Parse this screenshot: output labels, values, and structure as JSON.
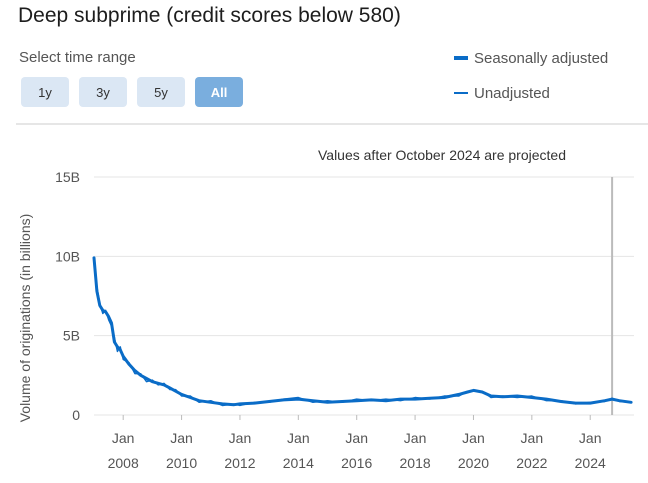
{
  "title": "Deep subprime (credit scores below 580)",
  "time_range": {
    "label": "Select time range",
    "options": [
      {
        "label": "1y",
        "active": false
      },
      {
        "label": "3y",
        "active": false
      },
      {
        "label": "5y",
        "active": false
      },
      {
        "label": "All",
        "active": true
      }
    ]
  },
  "colors": {
    "series": "#0a6cc7",
    "grid": "#e4e4e4",
    "projection_line": "#bbbbbb",
    "active_button": "#7aaede",
    "button": "#dbe7f4"
  },
  "chart_data": {
    "type": "line",
    "title": "",
    "ylabel": "Volume of originations (in billions)",
    "xlabel": "",
    "ylim": [
      0,
      15
    ],
    "yticks": [
      0,
      5,
      10,
      15
    ],
    "ytick_labels": [
      "0",
      "5B",
      "10B",
      "15B"
    ],
    "xlim": [
      2007.0,
      2025.5
    ],
    "xticks": [
      2008,
      2010,
      2012,
      2014,
      2016,
      2018,
      2020,
      2022,
      2024
    ],
    "xtick_line1": [
      "Jan",
      "Jan",
      "Jan",
      "Jan",
      "Jan",
      "Jan",
      "Jan",
      "Jan",
      "Jan"
    ],
    "xtick_line2": [
      "2008",
      "2010",
      "2012",
      "2014",
      "2016",
      "2018",
      "2020",
      "2022",
      "2024"
    ],
    "annotation": "Values after October 2024 are projected",
    "projection_start": 2024.75,
    "grid": true,
    "legend_position": "top-right",
    "series": [
      {
        "name": "Seasonally adjusted",
        "x": [
          2007.0,
          2007.1,
          2007.2,
          2007.3,
          2007.4,
          2007.5,
          2007.6,
          2007.7,
          2007.8,
          2007.9,
          2008.0,
          2008.2,
          2008.4,
          2008.6,
          2008.8,
          2009.0,
          2009.2,
          2009.4,
          2009.6,
          2009.8,
          2010.0,
          2010.3,
          2010.6,
          2011.0,
          2011.4,
          2011.8,
          2012.0,
          2012.5,
          2013.0,
          2013.5,
          2014.0,
          2014.5,
          2015.0,
          2015.5,
          2016.0,
          2016.5,
          2017.0,
          2017.5,
          2018.0,
          2018.5,
          2019.0,
          2019.5,
          2019.8,
          2020.0,
          2020.3,
          2020.6,
          2021.0,
          2021.5,
          2022.0,
          2022.5,
          2023.0,
          2023.5,
          2024.0,
          2024.5,
          2024.75,
          2025.0,
          2025.4
        ],
        "y": [
          9.9,
          7.8,
          6.9,
          6.6,
          6.5,
          6.2,
          5.8,
          4.6,
          4.3,
          4.1,
          3.7,
          3.2,
          2.8,
          2.5,
          2.3,
          2.1,
          2.0,
          1.9,
          1.7,
          1.5,
          1.3,
          1.1,
          0.9,
          0.8,
          0.7,
          0.65,
          0.7,
          0.75,
          0.85,
          0.95,
          1.0,
          0.9,
          0.8,
          0.85,
          0.9,
          0.95,
          0.9,
          1.0,
          1.0,
          1.05,
          1.1,
          1.3,
          1.45,
          1.55,
          1.45,
          1.2,
          1.15,
          1.2,
          1.1,
          1.0,
          0.85,
          0.75,
          0.75,
          0.9,
          1.0,
          0.9,
          0.8
        ]
      },
      {
        "name": "Unadjusted",
        "x": [
          2007.0,
          2007.1,
          2007.2,
          2007.3,
          2007.4,
          2007.5,
          2007.6,
          2007.7,
          2007.8,
          2007.9,
          2008.0,
          2008.2,
          2008.4,
          2008.6,
          2008.8,
          2009.0,
          2009.2,
          2009.4,
          2009.6,
          2009.8,
          2010.0,
          2010.3,
          2010.6,
          2011.0,
          2011.4,
          2011.8,
          2012.0,
          2012.5,
          2013.0,
          2013.5,
          2014.0,
          2014.5,
          2015.0,
          2015.5,
          2016.0,
          2016.5,
          2017.0,
          2017.5,
          2018.0,
          2018.5,
          2019.0,
          2019.5,
          2019.8,
          2020.0,
          2020.3,
          2020.6,
          2021.0,
          2021.5,
          2022.0,
          2022.5,
          2023.0,
          2023.5,
          2024.0,
          2024.5,
          2024.75,
          2025.0,
          2025.4
        ],
        "y": [
          9.6,
          8.1,
          7.0,
          6.4,
          6.6,
          6.0,
          5.6,
          4.9,
          4.0,
          4.3,
          3.5,
          3.3,
          2.6,
          2.6,
          2.1,
          2.2,
          1.9,
          2.0,
          1.6,
          1.6,
          1.2,
          1.2,
          0.8,
          0.9,
          0.6,
          0.7,
          0.6,
          0.8,
          0.8,
          1.0,
          1.1,
          0.8,
          0.9,
          0.8,
          1.0,
          0.9,
          1.0,
          0.9,
          1.1,
          1.0,
          1.2,
          1.2,
          1.5,
          1.5,
          1.5,
          1.1,
          1.2,
          1.1,
          1.2,
          0.9,
          0.9,
          0.7,
          0.8,
          0.85,
          1.05,
          0.85,
          0.8
        ]
      }
    ]
  }
}
